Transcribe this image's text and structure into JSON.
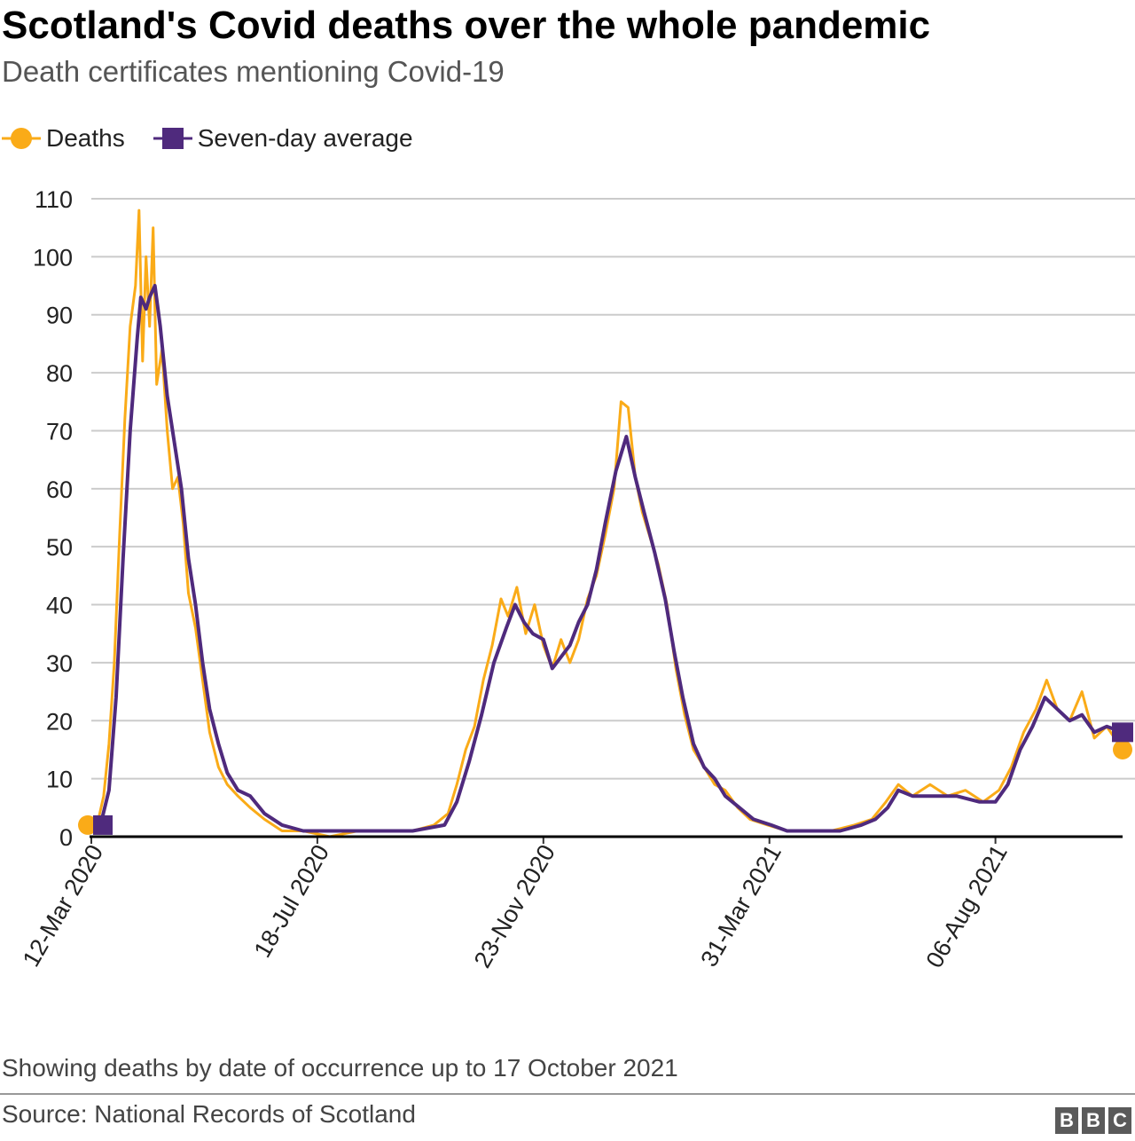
{
  "header": {
    "title": "Scotland's Covid deaths over the whole pandemic",
    "subtitle": "Death certificates mentioning Covid-19"
  },
  "legend": {
    "deaths_label": "Deaths",
    "average_label": "Seven-day average"
  },
  "colors": {
    "deaths": "#FAAB18",
    "average": "#4F2A7D",
    "grid": "#cbcbcb",
    "baseline": "#000000"
  },
  "footer": {
    "note": "Showing deaths by date of occurrence up to 17 October 2021",
    "source": "Source: National Records of Scotland",
    "logo_letters": [
      "B",
      "B",
      "C"
    ]
  },
  "chart_data": {
    "type": "line",
    "title": "Scotland's Covid deaths over the whole pandemic",
    "subtitle": "Death certificates mentioning Covid-19",
    "x_type": "date",
    "x_range": [
      "2020-03-12",
      "2021-10-17"
    ],
    "ylim": [
      0,
      110
    ],
    "yticks": [
      0,
      10,
      20,
      30,
      40,
      50,
      60,
      70,
      80,
      90,
      100,
      110
    ],
    "xticks": [
      "12-Mar 2020",
      "18-Jul 2020",
      "23-Nov 2020",
      "31-Mar 2021",
      "06-Aug 2021"
    ],
    "xtick_dates": [
      "2020-03-12",
      "2020-07-18",
      "2020-11-23",
      "2021-03-31",
      "2021-08-06"
    ],
    "grid": true,
    "legend_position": "top-left",
    "series": [
      {
        "name": "Deaths",
        "marker": "circle",
        "points": [
          [
            "2020-03-12",
            2
          ],
          [
            "2020-03-16",
            3
          ],
          [
            "2020-03-19",
            7
          ],
          [
            "2020-03-22",
            16
          ],
          [
            "2020-03-25",
            30
          ],
          [
            "2020-03-28",
            52
          ],
          [
            "2020-03-31",
            72
          ],
          [
            "2020-04-03",
            88
          ],
          [
            "2020-04-06",
            95
          ],
          [
            "2020-04-08",
            108
          ],
          [
            "2020-04-10",
            82
          ],
          [
            "2020-04-12",
            100
          ],
          [
            "2020-04-14",
            88
          ],
          [
            "2020-04-16",
            105
          ],
          [
            "2020-04-18",
            78
          ],
          [
            "2020-04-21",
            84
          ],
          [
            "2020-04-24",
            70
          ],
          [
            "2020-04-27",
            60
          ],
          [
            "2020-04-30",
            62
          ],
          [
            "2020-05-03",
            54
          ],
          [
            "2020-05-06",
            42
          ],
          [
            "2020-05-10",
            36
          ],
          [
            "2020-05-14",
            27
          ],
          [
            "2020-05-18",
            18
          ],
          [
            "2020-05-23",
            12
          ],
          [
            "2020-05-28",
            9
          ],
          [
            "2020-06-03",
            7
          ],
          [
            "2020-06-10",
            5
          ],
          [
            "2020-06-18",
            3
          ],
          [
            "2020-06-28",
            1
          ],
          [
            "2020-07-10",
            1
          ],
          [
            "2020-07-25",
            0
          ],
          [
            "2020-08-10",
            1
          ],
          [
            "2020-08-25",
            1
          ],
          [
            "2020-09-10",
            1
          ],
          [
            "2020-09-22",
            2
          ],
          [
            "2020-09-30",
            4
          ],
          [
            "2020-10-05",
            9
          ],
          [
            "2020-10-10",
            15
          ],
          [
            "2020-10-15",
            19
          ],
          [
            "2020-10-20",
            27
          ],
          [
            "2020-10-25",
            33
          ],
          [
            "2020-10-30",
            41
          ],
          [
            "2020-11-03",
            38
          ],
          [
            "2020-11-08",
            43
          ],
          [
            "2020-11-13",
            35
          ],
          [
            "2020-11-18",
            40
          ],
          [
            "2020-11-23",
            33
          ],
          [
            "2020-11-28",
            29
          ],
          [
            "2020-12-03",
            34
          ],
          [
            "2020-12-08",
            30
          ],
          [
            "2020-12-13",
            34
          ],
          [
            "2020-12-18",
            41
          ],
          [
            "2020-12-23",
            45
          ],
          [
            "2020-12-28",
            52
          ],
          [
            "2021-01-02",
            60
          ],
          [
            "2021-01-06",
            75
          ],
          [
            "2021-01-10",
            74
          ],
          [
            "2021-01-14",
            62
          ],
          [
            "2021-01-18",
            56
          ],
          [
            "2021-01-22",
            52
          ],
          [
            "2021-01-27",
            47
          ],
          [
            "2021-02-01",
            40
          ],
          [
            "2021-02-06",
            29
          ],
          [
            "2021-02-11",
            21
          ],
          [
            "2021-02-16",
            15
          ],
          [
            "2021-02-22",
            12
          ],
          [
            "2021-02-28",
            9
          ],
          [
            "2021-03-06",
            8
          ],
          [
            "2021-03-13",
            5
          ],
          [
            "2021-03-20",
            3
          ],
          [
            "2021-03-30",
            2
          ],
          [
            "2021-04-10",
            1
          ],
          [
            "2021-04-22",
            1
          ],
          [
            "2021-05-05",
            1
          ],
          [
            "2021-05-18",
            2
          ],
          [
            "2021-05-28",
            3
          ],
          [
            "2021-06-05",
            6
          ],
          [
            "2021-06-12",
            9
          ],
          [
            "2021-06-20",
            7
          ],
          [
            "2021-06-30",
            9
          ],
          [
            "2021-07-10",
            7
          ],
          [
            "2021-07-20",
            8
          ],
          [
            "2021-07-30",
            6
          ],
          [
            "2021-08-08",
            8
          ],
          [
            "2021-08-15",
            12
          ],
          [
            "2021-08-22",
            18
          ],
          [
            "2021-08-29",
            22
          ],
          [
            "2021-09-04",
            27
          ],
          [
            "2021-09-10",
            22
          ],
          [
            "2021-09-17",
            20
          ],
          [
            "2021-09-24",
            25
          ],
          [
            "2021-10-01",
            17
          ],
          [
            "2021-10-08",
            19
          ],
          [
            "2021-10-17",
            15
          ]
        ]
      },
      {
        "name": "Seven-day average",
        "marker": "square",
        "points": [
          [
            "2020-03-12",
            2
          ],
          [
            "2020-03-18",
            3
          ],
          [
            "2020-03-22",
            8
          ],
          [
            "2020-03-26",
            24
          ],
          [
            "2020-03-30",
            48
          ],
          [
            "2020-04-03",
            70
          ],
          [
            "2020-04-07",
            86
          ],
          [
            "2020-04-09",
            93
          ],
          [
            "2020-04-12",
            91
          ],
          [
            "2020-04-14",
            93
          ],
          [
            "2020-04-17",
            95
          ],
          [
            "2020-04-20",
            88
          ],
          [
            "2020-04-24",
            76
          ],
          [
            "2020-04-28",
            68
          ],
          [
            "2020-05-02",
            60
          ],
          [
            "2020-05-06",
            48
          ],
          [
            "2020-05-10",
            40
          ],
          [
            "2020-05-14",
            30
          ],
          [
            "2020-05-18",
            22
          ],
          [
            "2020-05-23",
            16
          ],
          [
            "2020-05-28",
            11
          ],
          [
            "2020-06-03",
            8
          ],
          [
            "2020-06-10",
            7
          ],
          [
            "2020-06-18",
            4
          ],
          [
            "2020-06-28",
            2
          ],
          [
            "2020-07-10",
            1
          ],
          [
            "2020-08-10",
            1
          ],
          [
            "2020-09-10",
            1
          ],
          [
            "2020-09-28",
            2
          ],
          [
            "2020-10-05",
            6
          ],
          [
            "2020-10-12",
            13
          ],
          [
            "2020-10-19",
            21
          ],
          [
            "2020-10-26",
            30
          ],
          [
            "2020-11-02",
            36
          ],
          [
            "2020-11-07",
            40
          ],
          [
            "2020-11-12",
            37
          ],
          [
            "2020-11-17",
            35
          ],
          [
            "2020-11-23",
            34
          ],
          [
            "2020-11-28",
            29
          ],
          [
            "2020-12-03",
            31
          ],
          [
            "2020-12-08",
            33
          ],
          [
            "2020-12-13",
            37
          ],
          [
            "2020-12-18",
            40
          ],
          [
            "2020-12-23",
            46
          ],
          [
            "2020-12-28",
            54
          ],
          [
            "2021-01-03",
            63
          ],
          [
            "2021-01-09",
            69
          ],
          [
            "2021-01-14",
            62
          ],
          [
            "2021-01-19",
            56
          ],
          [
            "2021-01-25",
            49
          ],
          [
            "2021-01-31",
            41
          ],
          [
            "2021-02-05",
            32
          ],
          [
            "2021-02-10",
            24
          ],
          [
            "2021-02-16",
            16
          ],
          [
            "2021-02-22",
            12
          ],
          [
            "2021-02-28",
            10
          ],
          [
            "2021-03-06",
            7
          ],
          [
            "2021-03-14",
            5
          ],
          [
            "2021-03-22",
            3
          ],
          [
            "2021-04-01",
            2
          ],
          [
            "2021-04-10",
            1
          ],
          [
            "2021-04-25",
            1
          ],
          [
            "2021-05-10",
            1
          ],
          [
            "2021-05-22",
            2
          ],
          [
            "2021-05-30",
            3
          ],
          [
            "2021-06-06",
            5
          ],
          [
            "2021-06-12",
            8
          ],
          [
            "2021-06-20",
            7
          ],
          [
            "2021-07-01",
            7
          ],
          [
            "2021-07-15",
            7
          ],
          [
            "2021-07-28",
            6
          ],
          [
            "2021-08-06",
            6
          ],
          [
            "2021-08-13",
            9
          ],
          [
            "2021-08-20",
            15
          ],
          [
            "2021-08-27",
            19
          ],
          [
            "2021-09-03",
            24
          ],
          [
            "2021-09-10",
            22
          ],
          [
            "2021-09-17",
            20
          ],
          [
            "2021-09-24",
            21
          ],
          [
            "2021-10-01",
            18
          ],
          [
            "2021-10-08",
            19
          ],
          [
            "2021-10-17",
            18
          ]
        ]
      }
    ]
  }
}
